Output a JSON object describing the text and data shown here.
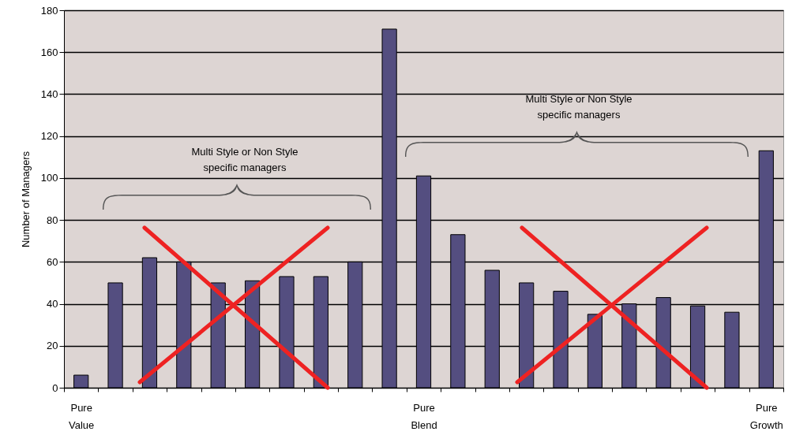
{
  "chart_data": {
    "type": "bar",
    "ylabel": "Number of Managers",
    "categories": [
      "Pure Value",
      null,
      null,
      null,
      null,
      null,
      null,
      null,
      null,
      null,
      "Pure Blend",
      null,
      null,
      null,
      null,
      null,
      null,
      null,
      null,
      null,
      "Pure Growth"
    ],
    "values": [
      6,
      50,
      62,
      60,
      50,
      51,
      53,
      53,
      60,
      171,
      101,
      73,
      56,
      50,
      46,
      35,
      40,
      43,
      39,
      36,
      113
    ],
    "color": "#544e80",
    "ylim": [
      0,
      180
    ],
    "yticks": [
      0,
      20,
      40,
      60,
      80,
      100,
      120,
      140,
      160,
      180
    ],
    "grid": "y",
    "annotations": [
      "Multi Style or Non Style specific managers",
      "Multi Style or Non Style specific managers"
    ]
  }
}
